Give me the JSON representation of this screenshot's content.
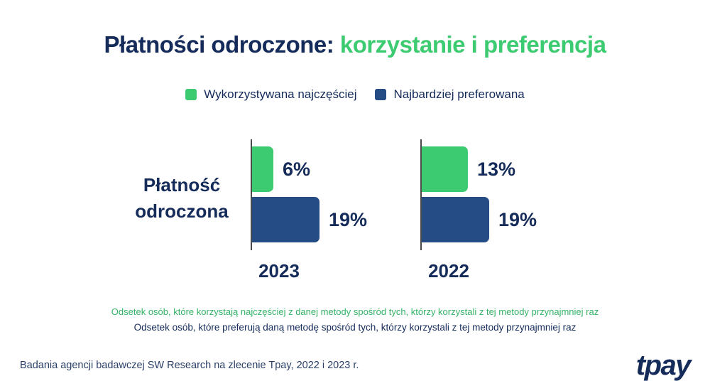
{
  "title": {
    "part1": "Płatności odroczone: ",
    "part2": "korzystanie i preferencja"
  },
  "legend": {
    "items": [
      {
        "label": "Wykorzystywana najczęściej",
        "color": "#3DCB72"
      },
      {
        "label": "Najbardziej preferowana",
        "color": "#254C85"
      }
    ]
  },
  "chart_data": {
    "type": "bar",
    "orientation": "horizontal",
    "row_label": "Płatność odroczona",
    "categories": [
      "2023",
      "2022"
    ],
    "series": [
      {
        "name": "Wykorzystywana najczęściej",
        "values": [
          6,
          13
        ],
        "color": "#3DCB72"
      },
      {
        "name": "Najbardziej preferowana",
        "values": [
          19,
          19
        ],
        "color": "#254C85"
      }
    ],
    "value_suffix": "%",
    "xlim": [
      0,
      20
    ],
    "grid": false,
    "legend_position": "top"
  },
  "footnotes": [
    {
      "text": "Odsetek osób, które korzystają najczęściej z danej metody spośród tych, którzy korzystali z tej metody przynajmniej raz",
      "color": "#34B266"
    },
    {
      "text": "Odsetek osób, które preferują daną metodę spośród tych, którzy korzystali z tej metody przynajmniej raz",
      "color": "#152B5A"
    }
  ],
  "footer": {
    "source": "Badania agencji badawczej SW Research na zlecenie Tpay, 2022 i 2023 r.",
    "logo": "tpay"
  },
  "colors": {
    "dark_navy": "#152B5A",
    "bar_navy": "#254C85",
    "green": "#3DCB72",
    "footnote_green": "#34B266",
    "axis_gray": "#4A4A4A",
    "background": "#FFFFFF"
  }
}
